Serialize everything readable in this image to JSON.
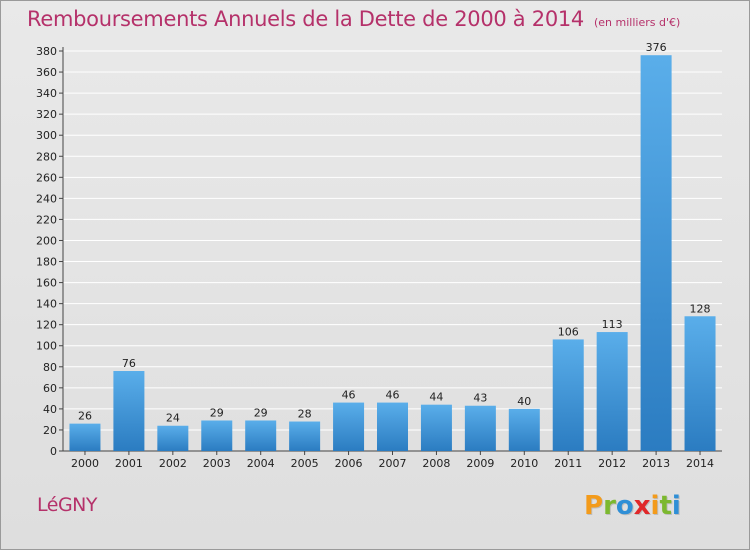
{
  "title": "Remboursements Annuels de la Dette de 2000 à 2014",
  "subtitle": "(en milliers d'€)",
  "town": "LéGNY",
  "logo": {
    "text": "Proxiti",
    "letters": [
      {
        "ch": "P",
        "color": "#f39b1b"
      },
      {
        "ch": "r",
        "color": "#7cb82f"
      },
      {
        "ch": "o",
        "color": "#2f8fd6"
      },
      {
        "ch": "x",
        "color": "#e0282a"
      },
      {
        "ch": "i",
        "color": "#f39b1b"
      },
      {
        "ch": "t",
        "color": "#7cb82f"
      },
      {
        "ch": "i",
        "color": "#2f8fd6"
      }
    ]
  },
  "colors": {
    "title": "#b5316a",
    "bar_light": "#5aaeea",
    "bar_dark": "#2b7cc1",
    "grid": "#ffffff"
  },
  "chart_data": {
    "type": "bar",
    "categories": [
      "2000",
      "2001",
      "2002",
      "2003",
      "2004",
      "2005",
      "2006",
      "2007",
      "2008",
      "2009",
      "2010",
      "2011",
      "2012",
      "2013",
      "2014"
    ],
    "values": [
      26,
      76,
      24,
      29,
      29,
      28,
      46,
      46,
      44,
      43,
      40,
      106,
      113,
      376,
      128
    ],
    "title": "Remboursements Annuels de la Dette de 2000 à 2014",
    "subtitle": "(en milliers d'€)",
    "ylim": [
      0,
      380
    ],
    "yticks": [
      0,
      20,
      40,
      60,
      80,
      100,
      120,
      140,
      160,
      180,
      200,
      220,
      240,
      260,
      280,
      300,
      320,
      340,
      360,
      380
    ],
    "grid": true,
    "legend": "none"
  }
}
